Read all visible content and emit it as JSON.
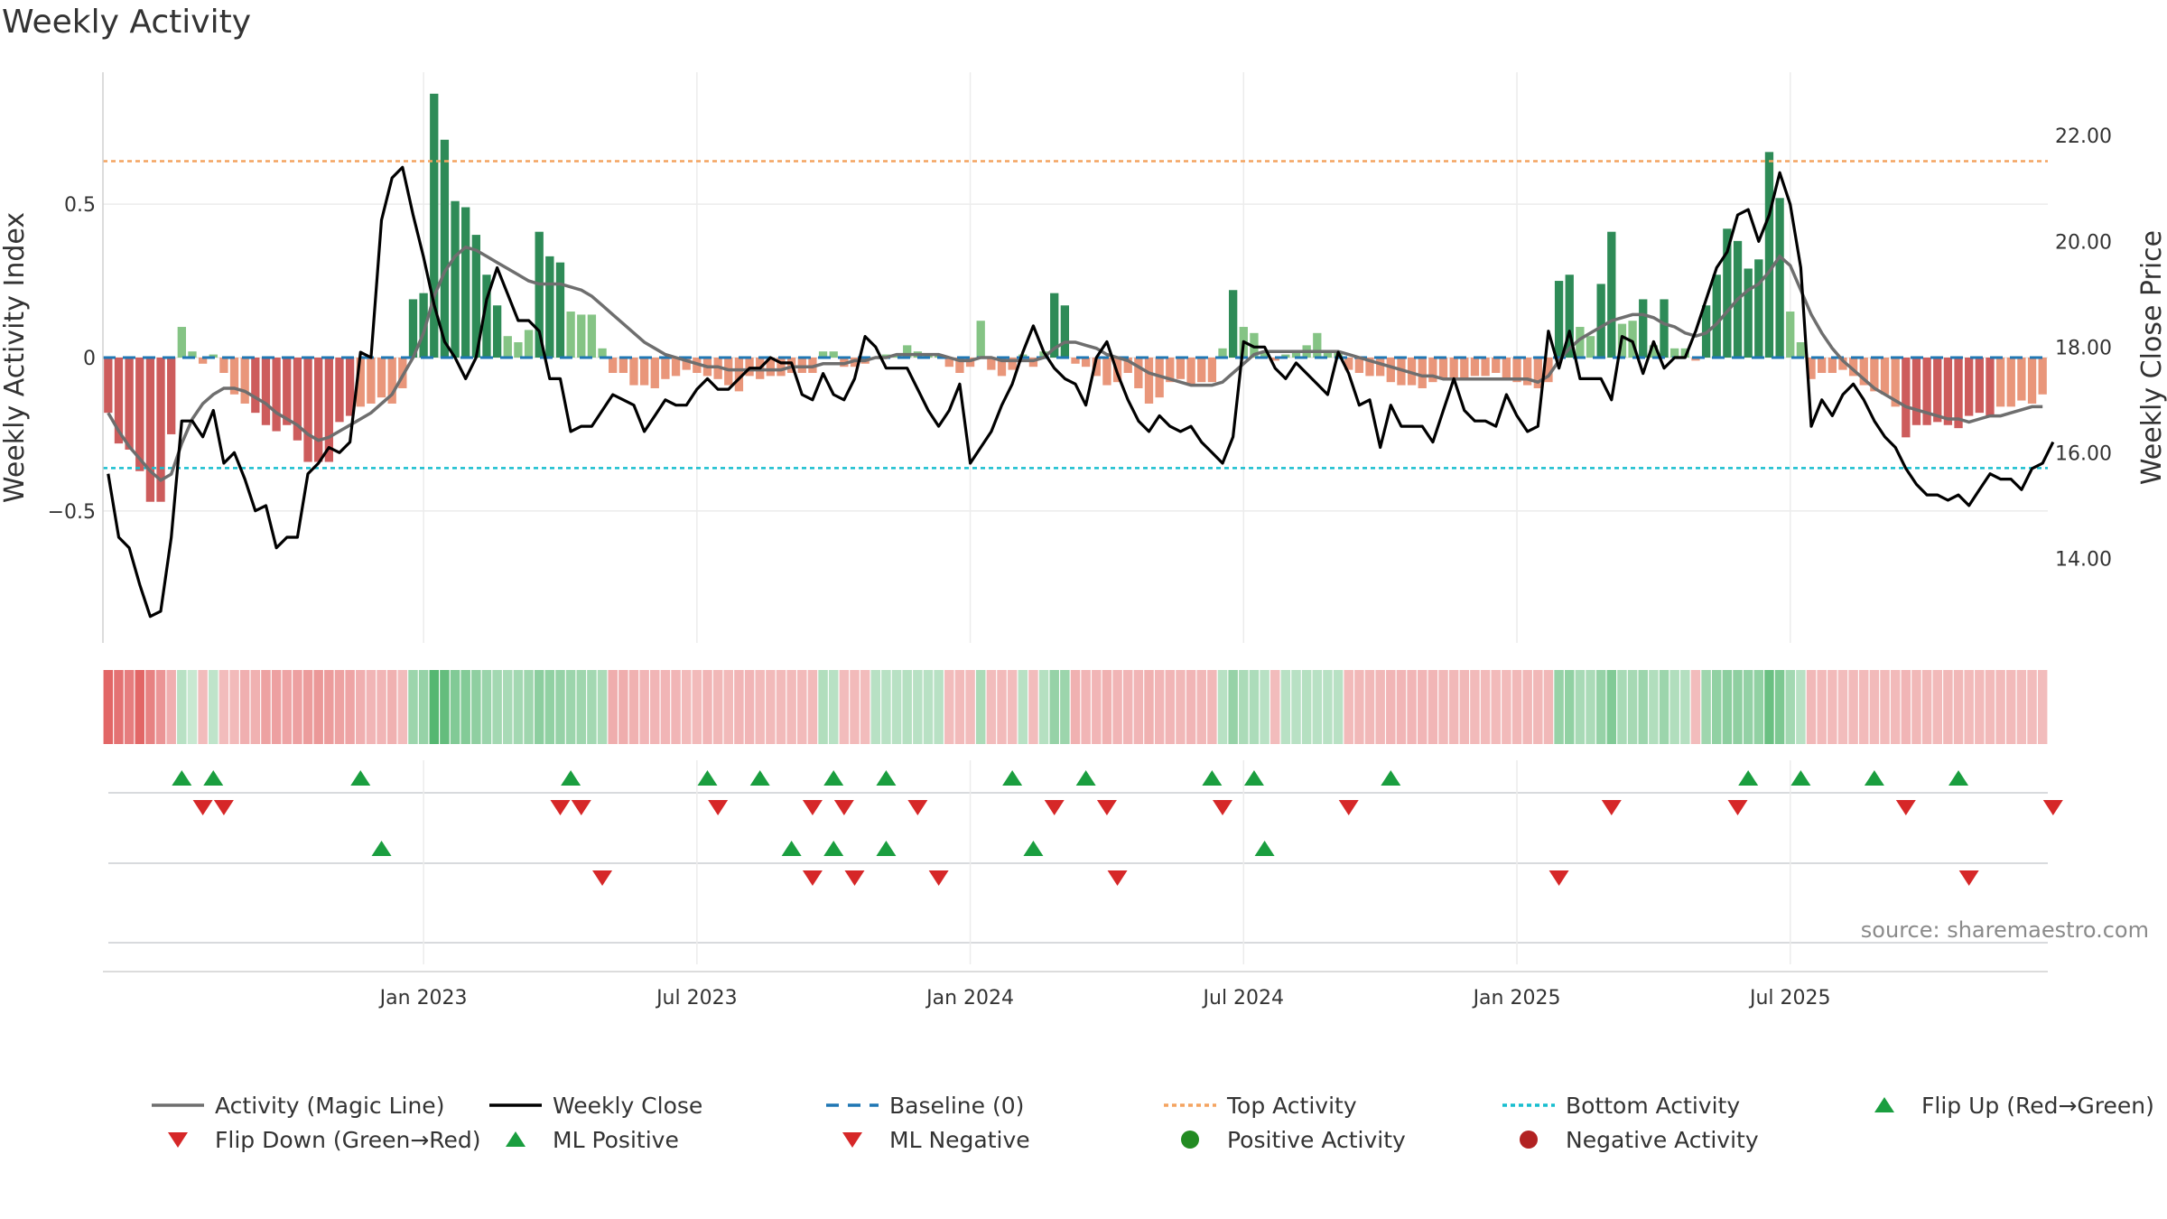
{
  "title": "Weekly Activity",
  "source": "source: sharemaestro.com",
  "colors": {
    "pos_dark": "#2e8b57",
    "pos_light": "#85c485",
    "neg_dark": "#cd5c5c",
    "neg_light": "#e9967a",
    "magic": "#6e6e6e",
    "close": "#000000",
    "baseline": "#1f77b4",
    "top": "#f4a460",
    "bottom": "#17becf",
    "up": "#1a9e3f",
    "down": "#d62728",
    "pos_dot": "#228b22",
    "neg_dot": "#b22222"
  },
  "chart_data": {
    "type": "bar+line",
    "title": "Weekly Activity",
    "ylabel_left": "Weekly Activity Index",
    "ylabel_right": "Weekly Close Price",
    "left_ticks": [
      0.5,
      0,
      -0.5
    ],
    "left_tick_labels": [
      "0.5",
      "0",
      "−0.5"
    ],
    "left_ylim": [
      -0.93,
      0.93
    ],
    "right_ticks": [
      22,
      20,
      18,
      16,
      14
    ],
    "right_tick_labels": [
      "22.00",
      "20.00",
      "18.00",
      "16.00",
      "14.00"
    ],
    "right_ylim": [
      12.4,
      23.2
    ],
    "x_ticks": [
      30,
      56,
      82,
      108,
      134,
      160
    ],
    "x_tick_labels": [
      "Jan 2023",
      "Jul 2023",
      "Jan 2024",
      "Jul 2024",
      "Jan 2025",
      "Jul 2025"
    ],
    "top_activity": 0.64,
    "bottom_activity": -0.36,
    "activity": [
      -0.18,
      -0.28,
      -0.3,
      -0.37,
      -0.47,
      -0.47,
      -0.25,
      0.1,
      0.02,
      -0.02,
      0.01,
      -0.05,
      -0.12,
      -0.15,
      -0.18,
      -0.22,
      -0.24,
      -0.22,
      -0.27,
      -0.34,
      -0.34,
      -0.34,
      -0.21,
      -0.19,
      -0.16,
      -0.15,
      -0.13,
      -0.15,
      -0.1,
      0.19,
      0.21,
      0.86,
      0.71,
      0.51,
      0.49,
      0.4,
      0.27,
      0.17,
      0.07,
      0.05,
      0.09,
      0.41,
      0.33,
      0.31,
      0.15,
      0.14,
      0.14,
      0.03,
      -0.05,
      -0.05,
      -0.09,
      -0.09,
      -0.1,
      -0.07,
      -0.06,
      -0.04,
      -0.05,
      -0.06,
      -0.07,
      -0.09,
      -0.11,
      -0.06,
      -0.07,
      -0.06,
      -0.06,
      -0.05,
      -0.05,
      -0.05,
      0.02,
      0.02,
      -0.03,
      -0.03,
      -0.02,
      0.0,
      0.01,
      0.01,
      0.04,
      0.02,
      0.01,
      0.01,
      -0.03,
      -0.05,
      -0.03,
      0.12,
      -0.04,
      -0.06,
      -0.04,
      0.01,
      -0.03,
      0.02,
      0.21,
      0.17,
      -0.02,
      -0.03,
      -0.06,
      -0.09,
      -0.08,
      -0.05,
      -0.1,
      -0.15,
      -0.13,
      -0.08,
      -0.07,
      -0.09,
      -0.08,
      -0.08,
      0.03,
      0.22,
      0.1,
      0.08,
      0.02,
      -0.01,
      0.01,
      0.02,
      0.04,
      0.08,
      0.02,
      0.02,
      -0.04,
      -0.05,
      -0.06,
      -0.06,
      -0.08,
      -0.09,
      -0.09,
      -0.1,
      -0.08,
      -0.07,
      -0.07,
      -0.07,
      -0.06,
      -0.06,
      -0.05,
      -0.07,
      -0.08,
      -0.09,
      -0.1,
      -0.08,
      0.25,
      0.27,
      0.1,
      0.07,
      0.24,
      0.41,
      0.11,
      0.12,
      0.19,
      0.04,
      0.19,
      0.03,
      0.03,
      -0.01,
      0.17,
      0.27,
      0.42,
      0.38,
      0.29,
      0.32,
      0.67,
      0.52,
      0.15,
      0.05,
      -0.07,
      -0.05,
      -0.05,
      -0.04,
      -0.06,
      -0.09,
      -0.11,
      -0.12,
      -0.16,
      -0.26,
      -0.22,
      -0.22,
      -0.21,
      -0.22,
      -0.23,
      -0.19,
      -0.18,
      -0.19,
      -0.16,
      -0.16,
      -0.14,
      -0.15,
      -0.12
    ],
    "magic_line": [
      -0.18,
      -0.24,
      -0.29,
      -0.33,
      -0.37,
      -0.4,
      -0.38,
      -0.28,
      -0.2,
      -0.15,
      -0.12,
      -0.1,
      -0.1,
      -0.11,
      -0.13,
      -0.15,
      -0.18,
      -0.2,
      -0.22,
      -0.25,
      -0.27,
      -0.26,
      -0.24,
      -0.22,
      -0.2,
      -0.18,
      -0.15,
      -0.12,
      -0.06,
      0.0,
      0.08,
      0.2,
      0.28,
      0.33,
      0.36,
      0.35,
      0.33,
      0.31,
      0.29,
      0.27,
      0.25,
      0.24,
      0.24,
      0.24,
      0.23,
      0.22,
      0.2,
      0.17,
      0.14,
      0.11,
      0.08,
      0.05,
      0.03,
      0.01,
      0.0,
      -0.01,
      -0.02,
      -0.03,
      -0.03,
      -0.04,
      -0.04,
      -0.04,
      -0.04,
      -0.04,
      -0.04,
      -0.03,
      -0.03,
      -0.03,
      -0.02,
      -0.02,
      -0.02,
      -0.01,
      -0.01,
      0.0,
      0.0,
      0.01,
      0.01,
      0.01,
      0.01,
      0.01,
      0.0,
      -0.01,
      -0.01,
      0.0,
      0.0,
      -0.01,
      -0.01,
      -0.01,
      -0.01,
      0.0,
      0.03,
      0.05,
      0.05,
      0.04,
      0.03,
      0.01,
      0.0,
      -0.01,
      -0.03,
      -0.05,
      -0.06,
      -0.07,
      -0.08,
      -0.09,
      -0.09,
      -0.09,
      -0.08,
      -0.05,
      -0.02,
      0.01,
      0.02,
      0.02,
      0.02,
      0.02,
      0.02,
      0.02,
      0.02,
      0.02,
      0.01,
      0.0,
      -0.01,
      -0.02,
      -0.03,
      -0.04,
      -0.05,
      -0.06,
      -0.06,
      -0.07,
      -0.07,
      -0.07,
      -0.07,
      -0.07,
      -0.07,
      -0.07,
      -0.07,
      -0.07,
      -0.08,
      -0.06,
      -0.01,
      0.03,
      0.06,
      0.08,
      0.1,
      0.12,
      0.13,
      0.14,
      0.14,
      0.13,
      0.11,
      0.1,
      0.08,
      0.07,
      0.08,
      0.11,
      0.15,
      0.19,
      0.22,
      0.24,
      0.28,
      0.33,
      0.3,
      0.22,
      0.14,
      0.08,
      0.03,
      -0.01,
      -0.04,
      -0.07,
      -0.1,
      -0.12,
      -0.14,
      -0.16,
      -0.17,
      -0.18,
      -0.19,
      -0.2,
      -0.2,
      -0.21,
      -0.2,
      -0.19,
      -0.19,
      -0.18,
      -0.17,
      -0.16,
      -0.16
    ],
    "weekly_close": [
      15.6,
      14.4,
      14.2,
      13.5,
      12.9,
      13.0,
      14.4,
      16.6,
      16.6,
      16.3,
      16.8,
      15.8,
      16.0,
      15.5,
      14.9,
      15.0,
      14.2,
      14.4,
      14.4,
      15.6,
      15.8,
      16.1,
      16.0,
      16.2,
      17.9,
      17.8,
      20.4,
      21.2,
      21.4,
      20.5,
      19.7,
      18.8,
      18.1,
      17.8,
      17.4,
      17.8,
      18.9,
      19.5,
      19.0,
      18.5,
      18.5,
      18.3,
      17.4,
      17.4,
      16.4,
      16.5,
      16.5,
      16.8,
      17.1,
      17.0,
      16.9,
      16.4,
      16.7,
      17.0,
      16.9,
      16.9,
      17.2,
      17.4,
      17.2,
      17.2,
      17.4,
      17.6,
      17.6,
      17.8,
      17.7,
      17.7,
      17.1,
      17.0,
      17.5,
      17.1,
      17.0,
      17.4,
      18.2,
      18.0,
      17.6,
      17.6,
      17.6,
      17.2,
      16.8,
      16.5,
      16.8,
      17.3,
      15.8,
      16.1,
      16.4,
      16.9,
      17.3,
      17.9,
      18.4,
      17.9,
      17.6,
      17.4,
      17.3,
      16.9,
      17.8,
      18.1,
      17.5,
      17.0,
      16.6,
      16.4,
      16.7,
      16.5,
      16.4,
      16.5,
      16.2,
      16.0,
      15.8,
      16.3,
      18.1,
      18.0,
      18.0,
      17.6,
      17.4,
      17.7,
      17.5,
      17.3,
      17.1,
      17.9,
      17.5,
      16.9,
      17.0,
      16.1,
      16.9,
      16.5,
      16.5,
      16.5,
      16.2,
      16.8,
      17.4,
      16.8,
      16.6,
      16.6,
      16.5,
      17.1,
      16.7,
      16.4,
      16.5,
      18.3,
      17.6,
      18.3,
      17.4,
      17.4,
      17.4,
      17.0,
      18.2,
      18.1,
      17.5,
      18.1,
      17.6,
      17.8,
      17.8,
      18.3,
      18.9,
      19.5,
      19.8,
      20.5,
      20.6,
      20.0,
      20.5,
      21.3,
      20.7,
      19.5,
      16.5,
      17.0,
      16.7,
      17.1,
      17.3,
      17.0,
      16.6,
      16.3,
      16.1,
      15.7,
      15.4,
      15.2,
      15.2,
      15.1,
      15.2,
      15.0,
      15.3,
      15.6,
      15.5,
      15.5,
      15.3,
      15.7,
      15.8,
      16.2
    ],
    "heat_intensity": [
      0.95,
      0.85,
      0.78,
      0.95,
      0.75,
      0.6,
      0.4,
      0.3,
      0.2,
      0.3,
      0.25,
      0.3,
      0.32,
      0.4,
      0.38,
      0.5,
      0.52,
      0.48,
      0.52,
      0.55,
      0.58,
      0.55,
      0.5,
      0.48,
      0.4,
      0.36,
      0.35,
      0.38,
      0.3,
      0.5,
      0.55,
      1.0,
      0.9,
      0.7,
      0.68,
      0.6,
      0.52,
      0.45,
      0.42,
      0.45,
      0.48,
      0.62,
      0.58,
      0.55,
      0.5,
      0.48,
      0.45,
      0.4,
      0.42,
      0.42,
      0.38,
      0.36,
      0.35,
      0.36,
      0.35,
      0.32,
      0.33,
      0.36,
      0.34,
      0.32,
      0.36,
      0.35,
      0.33,
      0.32,
      0.32,
      0.33,
      0.32,
      0.33,
      0.35,
      0.3,
      0.3,
      0.32,
      0.3,
      0.3,
      0.3,
      0.3,
      0.32,
      0.3,
      0.3,
      0.3,
      0.3,
      0.32,
      0.3,
      0.4,
      0.3,
      0.32,
      0.3,
      0.3,
      0.3,
      0.32,
      0.55,
      0.5,
      0.38,
      0.36,
      0.36,
      0.38,
      0.36,
      0.35,
      0.36,
      0.38,
      0.36,
      0.35,
      0.34,
      0.36,
      0.34,
      0.34,
      0.3,
      0.55,
      0.4,
      0.38,
      0.3,
      0.3,
      0.3,
      0.3,
      0.32,
      0.3,
      0.3,
      0.3,
      0.32,
      0.34,
      0.34,
      0.34,
      0.36,
      0.36,
      0.36,
      0.36,
      0.35,
      0.34,
      0.34,
      0.34,
      0.32,
      0.32,
      0.32,
      0.32,
      0.34,
      0.34,
      0.34,
      0.34,
      0.55,
      0.58,
      0.42,
      0.4,
      0.55,
      0.7,
      0.42,
      0.44,
      0.5,
      0.36,
      0.5,
      0.36,
      0.34,
      0.3,
      0.48,
      0.58,
      0.62,
      0.6,
      0.56,
      0.58,
      0.85,
      0.72,
      0.45,
      0.3,
      0.34,
      0.32,
      0.32,
      0.3,
      0.32,
      0.32,
      0.32,
      0.32,
      0.33,
      0.35,
      0.34,
      0.34,
      0.33,
      0.34,
      0.34,
      0.33,
      0.32,
      0.33,
      0.32,
      0.32,
      0.31,
      0.31,
      0.3
    ],
    "flip_up": [
      7,
      10,
      24,
      44,
      57,
      62,
      69,
      74,
      86,
      93,
      105,
      109,
      122,
      156,
      161,
      168,
      176
    ],
    "flip_down": [
      9,
      11,
      43,
      45,
      58,
      67,
      70,
      77,
      90,
      95,
      106,
      118,
      143,
      155,
      171,
      185
    ],
    "ml_positive": [
      26,
      65,
      69,
      74,
      88,
      110
    ],
    "ml_negative": [
      47,
      67,
      71,
      79,
      96,
      138,
      177
    ],
    "legend": {
      "magic": "Activity (Magic Line)",
      "close": "Weekly Close",
      "baseline": "Baseline (0)",
      "top": "Top Activity",
      "bottom": "Bottom Activity",
      "flip_up": "Flip Up (Red→Green)",
      "flip_down": "Flip Down (Green→Red)",
      "ml_pos": "ML Positive",
      "ml_neg": "ML Negative",
      "pos_act": "Positive Activity",
      "neg_act": "Negative Activity"
    }
  }
}
